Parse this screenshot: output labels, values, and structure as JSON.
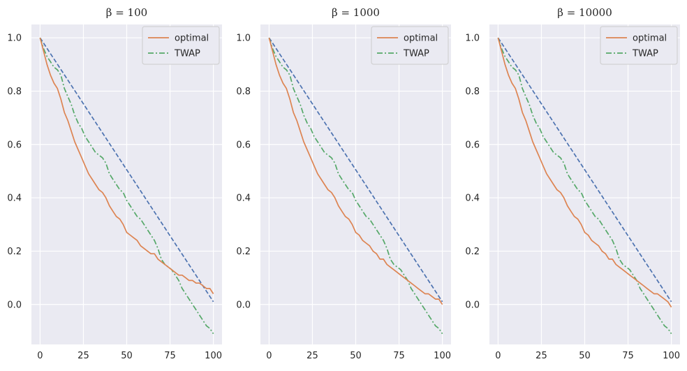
{
  "chart_data": [
    {
      "type": "line",
      "title": "β = 100",
      "xlim": [
        -5,
        105
      ],
      "ylim": [
        -0.15,
        1.05
      ],
      "xticks": [
        "0",
        "25",
        "50",
        "75",
        "100"
      ],
      "yticks": [
        "0.0",
        "0.2",
        "0.4",
        "0.6",
        "0.8",
        "1.0"
      ],
      "legend": "top-right",
      "series": [
        {
          "name": "optimal",
          "color": "#dd8452",
          "style": "solid",
          "x": [
            0,
            2,
            4,
            6,
            8,
            10,
            12,
            14,
            16,
            18,
            20,
            22,
            24,
            26,
            28,
            30,
            32,
            34,
            36,
            38,
            40,
            42,
            44,
            46,
            48,
            50,
            52,
            54,
            56,
            58,
            60,
            62,
            64,
            66,
            68,
            70,
            72,
            74,
            76,
            78,
            80,
            82,
            84,
            86,
            88,
            90,
            92,
            94,
            96,
            98,
            100
          ],
          "y": [
            1.0,
            0.95,
            0.9,
            0.86,
            0.83,
            0.81,
            0.77,
            0.72,
            0.69,
            0.65,
            0.61,
            0.58,
            0.55,
            0.52,
            0.49,
            0.47,
            0.45,
            0.43,
            0.42,
            0.4,
            0.37,
            0.35,
            0.33,
            0.32,
            0.3,
            0.27,
            0.26,
            0.25,
            0.24,
            0.22,
            0.21,
            0.2,
            0.19,
            0.19,
            0.17,
            0.16,
            0.15,
            0.14,
            0.13,
            0.12,
            0.11,
            0.11,
            0.1,
            0.09,
            0.09,
            0.08,
            0.08,
            0.07,
            0.06,
            0.06,
            0.04
          ]
        },
        {
          "name": "TWAP",
          "color": "#55a868",
          "style": "dashdot",
          "x": [
            0,
            2,
            4,
            6,
            8,
            10,
            12,
            14,
            16,
            18,
            20,
            22,
            24,
            26,
            28,
            30,
            32,
            34,
            36,
            38,
            40,
            42,
            44,
            46,
            48,
            50,
            52,
            54,
            56,
            58,
            60,
            62,
            64,
            66,
            68,
            70,
            72,
            74,
            76,
            78,
            80,
            82,
            84,
            86,
            88,
            90,
            92,
            94,
            96,
            98,
            100
          ],
          "y": [
            1.0,
            0.96,
            0.93,
            0.91,
            0.89,
            0.88,
            0.86,
            0.81,
            0.78,
            0.75,
            0.71,
            0.68,
            0.66,
            0.63,
            0.61,
            0.59,
            0.57,
            0.56,
            0.55,
            0.53,
            0.49,
            0.47,
            0.45,
            0.43,
            0.42,
            0.39,
            0.37,
            0.35,
            0.33,
            0.32,
            0.3,
            0.28,
            0.26,
            0.24,
            0.21,
            0.17,
            0.15,
            0.14,
            0.13,
            0.11,
            0.09,
            0.06,
            0.04,
            0.02,
            0.0,
            -0.02,
            -0.04,
            -0.06,
            -0.08,
            -0.09,
            -0.11
          ]
        },
        {
          "name": "",
          "color": "#4c72b0",
          "style": "dashed",
          "x": [
            0,
            100
          ],
          "y": [
            1.0,
            0.01
          ]
        }
      ]
    },
    {
      "type": "line",
      "title": "β = 1000",
      "xlim": [
        -5,
        105
      ],
      "ylim": [
        -0.15,
        1.05
      ],
      "xticks": [
        "0",
        "25",
        "50",
        "75",
        "100"
      ],
      "yticks": [
        "0.0",
        "0.2",
        "0.4",
        "0.6",
        "0.8",
        "1.0"
      ],
      "legend": "top-right",
      "series": [
        {
          "name": "optimal",
          "color": "#dd8452",
          "style": "solid",
          "x": [
            0,
            2,
            4,
            6,
            8,
            10,
            12,
            14,
            16,
            18,
            20,
            22,
            24,
            26,
            28,
            30,
            32,
            34,
            36,
            38,
            40,
            42,
            44,
            46,
            48,
            50,
            52,
            54,
            56,
            58,
            60,
            62,
            64,
            66,
            68,
            70,
            72,
            74,
            76,
            78,
            80,
            82,
            84,
            86,
            88,
            90,
            92,
            94,
            96,
            98,
            100
          ],
          "y": [
            1.0,
            0.95,
            0.9,
            0.86,
            0.83,
            0.81,
            0.77,
            0.72,
            0.69,
            0.65,
            0.61,
            0.58,
            0.55,
            0.52,
            0.49,
            0.47,
            0.45,
            0.43,
            0.42,
            0.4,
            0.37,
            0.35,
            0.33,
            0.32,
            0.3,
            0.27,
            0.26,
            0.24,
            0.23,
            0.22,
            0.2,
            0.19,
            0.17,
            0.17,
            0.15,
            0.14,
            0.13,
            0.12,
            0.11,
            0.1,
            0.09,
            0.08,
            0.07,
            0.06,
            0.05,
            0.04,
            0.04,
            0.03,
            0.02,
            0.02,
            0.0
          ]
        },
        {
          "name": "TWAP",
          "color": "#55a868",
          "style": "dashdot",
          "x": [
            0,
            2,
            4,
            6,
            8,
            10,
            12,
            14,
            16,
            18,
            20,
            22,
            24,
            26,
            28,
            30,
            32,
            34,
            36,
            38,
            40,
            42,
            44,
            46,
            48,
            50,
            52,
            54,
            56,
            58,
            60,
            62,
            64,
            66,
            68,
            70,
            72,
            74,
            76,
            78,
            80,
            82,
            84,
            86,
            88,
            90,
            92,
            94,
            96,
            98,
            100
          ],
          "y": [
            1.0,
            0.96,
            0.93,
            0.91,
            0.89,
            0.88,
            0.86,
            0.81,
            0.78,
            0.75,
            0.71,
            0.68,
            0.66,
            0.63,
            0.61,
            0.59,
            0.57,
            0.56,
            0.55,
            0.53,
            0.49,
            0.47,
            0.45,
            0.43,
            0.42,
            0.39,
            0.37,
            0.35,
            0.33,
            0.32,
            0.3,
            0.28,
            0.26,
            0.24,
            0.21,
            0.17,
            0.15,
            0.14,
            0.13,
            0.11,
            0.09,
            0.06,
            0.04,
            0.02,
            0.0,
            -0.02,
            -0.04,
            -0.06,
            -0.08,
            -0.09,
            -0.11
          ]
        },
        {
          "name": "",
          "color": "#4c72b0",
          "style": "dashed",
          "x": [
            0,
            100
          ],
          "y": [
            1.0,
            0.01
          ]
        }
      ]
    },
    {
      "type": "line",
      "title": "β = 10000",
      "xlim": [
        -5,
        105
      ],
      "ylim": [
        -0.15,
        1.05
      ],
      "xticks": [
        "0",
        "25",
        "50",
        "75",
        "100"
      ],
      "yticks": [
        "0.0",
        "0.2",
        "0.4",
        "0.6",
        "0.8",
        "1.0"
      ],
      "legend": "top-right",
      "series": [
        {
          "name": "optimal",
          "color": "#dd8452",
          "style": "solid",
          "x": [
            0,
            2,
            4,
            6,
            8,
            10,
            12,
            14,
            16,
            18,
            20,
            22,
            24,
            26,
            28,
            30,
            32,
            34,
            36,
            38,
            40,
            42,
            44,
            46,
            48,
            50,
            52,
            54,
            56,
            58,
            60,
            62,
            64,
            66,
            68,
            70,
            72,
            74,
            76,
            78,
            80,
            82,
            84,
            86,
            88,
            90,
            92,
            94,
            96,
            98,
            100
          ],
          "y": [
            1.0,
            0.95,
            0.9,
            0.86,
            0.83,
            0.81,
            0.77,
            0.72,
            0.69,
            0.65,
            0.61,
            0.58,
            0.55,
            0.52,
            0.49,
            0.47,
            0.45,
            0.43,
            0.42,
            0.4,
            0.37,
            0.35,
            0.33,
            0.32,
            0.3,
            0.27,
            0.26,
            0.24,
            0.23,
            0.22,
            0.2,
            0.19,
            0.17,
            0.17,
            0.15,
            0.14,
            0.13,
            0.12,
            0.11,
            0.1,
            0.09,
            0.08,
            0.07,
            0.06,
            0.05,
            0.04,
            0.04,
            0.03,
            0.02,
            0.01,
            -0.01
          ]
        },
        {
          "name": "TWAP",
          "color": "#55a868",
          "style": "dashdot",
          "x": [
            0,
            2,
            4,
            6,
            8,
            10,
            12,
            14,
            16,
            18,
            20,
            22,
            24,
            26,
            28,
            30,
            32,
            34,
            36,
            38,
            40,
            42,
            44,
            46,
            48,
            50,
            52,
            54,
            56,
            58,
            60,
            62,
            64,
            66,
            68,
            70,
            72,
            74,
            76,
            78,
            80,
            82,
            84,
            86,
            88,
            90,
            92,
            94,
            96,
            98,
            100
          ],
          "y": [
            1.0,
            0.96,
            0.93,
            0.91,
            0.89,
            0.88,
            0.86,
            0.81,
            0.78,
            0.75,
            0.71,
            0.68,
            0.66,
            0.63,
            0.61,
            0.59,
            0.57,
            0.56,
            0.55,
            0.53,
            0.49,
            0.47,
            0.45,
            0.43,
            0.42,
            0.39,
            0.37,
            0.35,
            0.33,
            0.32,
            0.3,
            0.28,
            0.26,
            0.24,
            0.21,
            0.17,
            0.15,
            0.14,
            0.13,
            0.11,
            0.09,
            0.06,
            0.04,
            0.02,
            0.0,
            -0.02,
            -0.04,
            -0.06,
            -0.08,
            -0.09,
            -0.11
          ]
        },
        {
          "name": "",
          "color": "#4c72b0",
          "style": "dashed",
          "x": [
            0,
            100
          ],
          "y": [
            1.0,
            0.01
          ]
        }
      ]
    }
  ],
  "colors": {
    "plot_bg": "#eaeaf2",
    "grid": "#ffffff",
    "text": "#262626"
  }
}
